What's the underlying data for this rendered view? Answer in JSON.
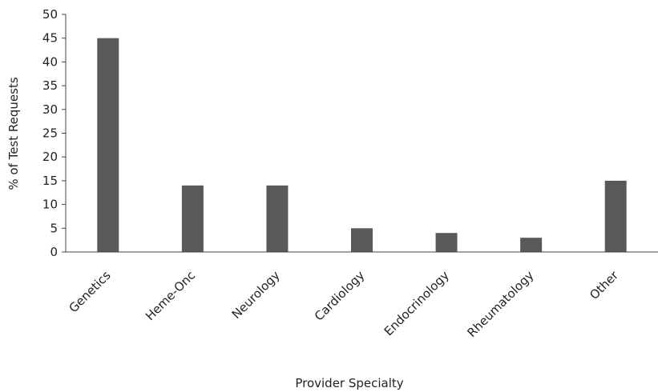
{
  "chart_data": {
    "type": "bar",
    "categories": [
      "Genetics",
      "Heme-Onc",
      "Neurology",
      "Cardiology",
      "Endocrinology",
      "Rheumatology",
      "Other"
    ],
    "values": [
      45,
      14,
      14,
      5,
      4,
      3,
      15
    ],
    "title": "",
    "xlabel": "Provider Specialty",
    "ylabel": "% of Test Requests",
    "ylim": [
      0,
      50
    ],
    "yticks": [
      "0",
      "5",
      "10",
      "15",
      "20",
      "25",
      "30",
      "35",
      "40",
      "45",
      "50"
    ],
    "grid": false,
    "legend": "none",
    "bar_color": "#595959"
  }
}
